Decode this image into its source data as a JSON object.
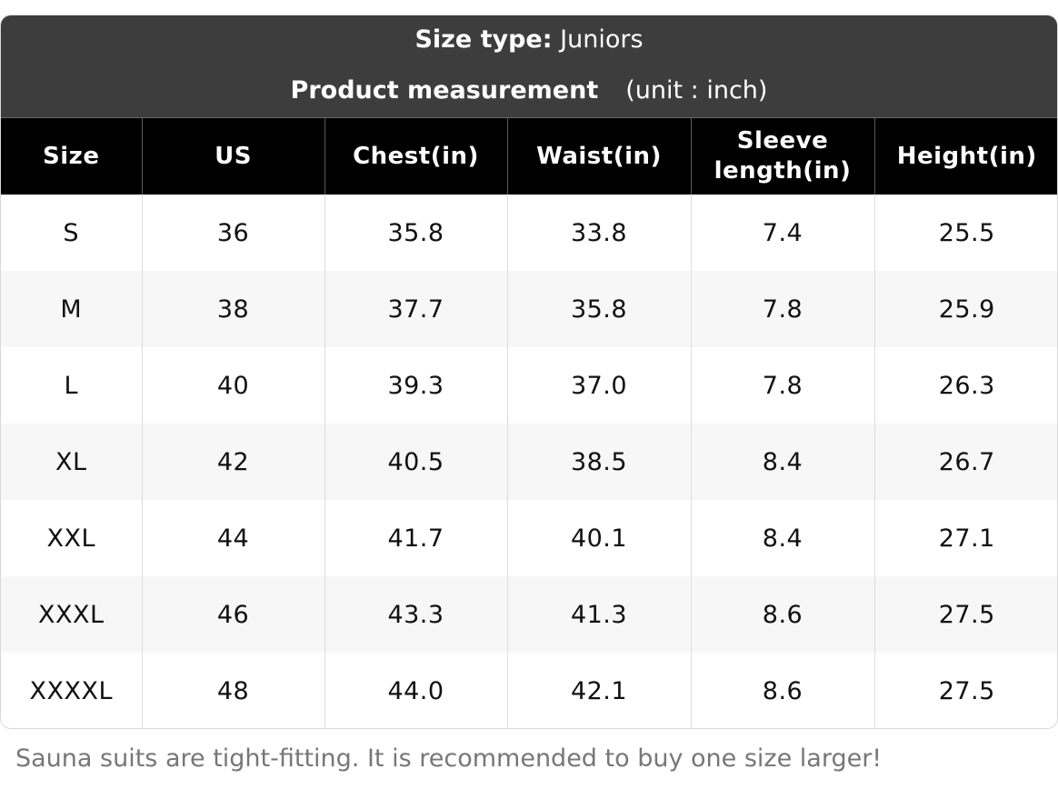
{
  "header": {
    "size_type_label": "Size type:",
    "size_type_value": "Juniors",
    "measurement_label": "Product measurement",
    "unit_note": "(unit : inch)"
  },
  "table": {
    "columns": [
      "Size",
      "US",
      "Chest(in)",
      "Waist(in)",
      "Sleeve length(in)",
      "Height(in)"
    ],
    "rows": [
      [
        "S",
        "36",
        "35.8",
        "33.8",
        "7.4",
        "25.5"
      ],
      [
        "M",
        "38",
        "37.7",
        "35.8",
        "7.8",
        "25.9"
      ],
      [
        "L",
        "40",
        "39.3",
        "37.0",
        "7.8",
        "26.3"
      ],
      [
        "XL",
        "42",
        "40.5",
        "38.5",
        "8.4",
        "26.7"
      ],
      [
        "XXL",
        "44",
        "41.7",
        "40.1",
        "8.4",
        "27.1"
      ],
      [
        "XXXL",
        "46",
        "43.3",
        "41.3",
        "8.6",
        "27.5"
      ],
      [
        "XXXXL",
        "48",
        "44.0",
        "42.1",
        "8.6",
        "27.5"
      ]
    ]
  },
  "footnote": "Sauna suits are tight-fitting. It is recommended to buy one size larger!"
}
